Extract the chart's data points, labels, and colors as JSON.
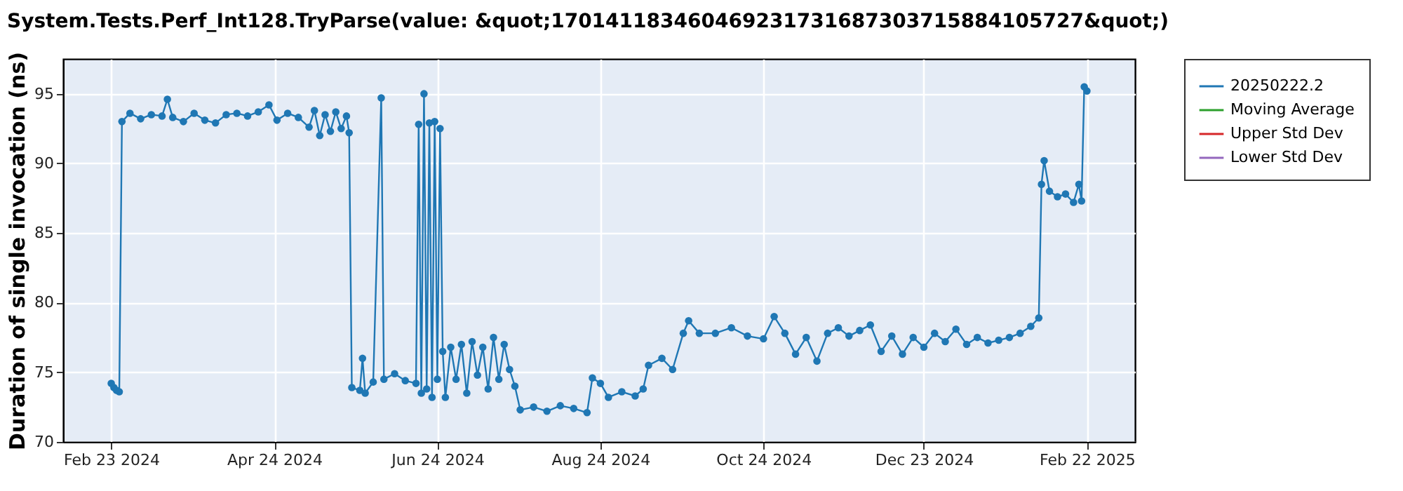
{
  "chart_data": {
    "type": "line",
    "title": "System.Tests.Perf_Int128.TryParse(value: &quot;170141183460469231731687303715884105727&quot;)",
    "ylabel": "Duration of single invocation (ns)",
    "x": [
      "2024-02-23",
      "2024-02-24",
      "2024-02-25",
      "2024-02-26",
      "2024-02-27",
      "2024-03-01",
      "2024-03-05",
      "2024-03-09",
      "2024-03-13",
      "2024-03-15",
      "2024-03-17",
      "2024-03-21",
      "2024-03-25",
      "2024-03-29",
      "2024-04-02",
      "2024-04-06",
      "2024-04-10",
      "2024-04-14",
      "2024-04-18",
      "2024-04-22",
      "2024-04-25",
      "2024-04-29",
      "2024-05-03",
      "2024-05-07",
      "2024-05-09",
      "2024-05-11",
      "2024-05-13",
      "2024-05-15",
      "2024-05-17",
      "2024-05-19",
      "2024-05-21",
      "2024-05-22",
      "2024-05-23",
      "2024-05-26",
      "2024-05-27",
      "2024-05-28",
      "2024-05-31",
      "2024-06-03",
      "2024-06-04",
      "2024-06-08",
      "2024-06-12",
      "2024-06-16",
      "2024-06-17",
      "2024-06-18",
      "2024-06-19",
      "2024-06-20",
      "2024-06-21",
      "2024-06-22",
      "2024-06-23",
      "2024-06-24",
      "2024-06-25",
      "2024-06-26",
      "2024-06-27",
      "2024-06-29",
      "2024-07-01",
      "2024-07-03",
      "2024-07-05",
      "2024-07-07",
      "2024-07-09",
      "2024-07-11",
      "2024-07-13",
      "2024-07-15",
      "2024-07-17",
      "2024-07-19",
      "2024-07-21",
      "2024-07-23",
      "2024-07-25",
      "2024-07-30",
      "2024-08-04",
      "2024-08-09",
      "2024-08-14",
      "2024-08-19",
      "2024-08-21",
      "2024-08-24",
      "2024-08-27",
      "2024-09-01",
      "2024-09-06",
      "2024-09-09",
      "2024-09-11",
      "2024-09-16",
      "2024-09-20",
      "2024-09-24",
      "2024-09-26",
      "2024-09-30",
      "2024-10-06",
      "2024-10-12",
      "2024-10-18",
      "2024-10-24",
      "2024-10-28",
      "2024-11-01",
      "2024-11-05",
      "2024-11-09",
      "2024-11-13",
      "2024-11-17",
      "2024-11-21",
      "2024-11-25",
      "2024-11-29",
      "2024-12-03",
      "2024-12-07",
      "2024-12-11",
      "2024-12-15",
      "2024-12-19",
      "2024-12-23",
      "2024-12-27",
      "2024-12-31",
      "2025-01-04",
      "2025-01-08",
      "2025-01-12",
      "2025-01-16",
      "2025-01-20",
      "2025-01-24",
      "2025-01-28",
      "2025-02-01",
      "2025-02-04",
      "2025-02-05",
      "2025-02-06",
      "2025-02-08",
      "2025-02-11",
      "2025-02-14",
      "2025-02-17",
      "2025-02-19",
      "2025-02-20",
      "2025-02-21",
      "2025-02-22"
    ],
    "series": [
      {
        "name": "20250222.2",
        "color": "#1f77b4",
        "values": [
          74.2,
          73.9,
          73.7,
          73.6,
          93.0,
          93.6,
          93.2,
          93.5,
          93.4,
          94.6,
          93.3,
          93.0,
          93.6,
          93.1,
          92.9,
          93.5,
          93.6,
          93.4,
          93.7,
          94.2,
          93.1,
          93.6,
          93.3,
          92.6,
          93.8,
          92.0,
          93.5,
          92.3,
          93.7,
          92.5,
          93.4,
          92.2,
          73.9,
          73.7,
          76.0,
          73.5,
          74.3,
          94.7,
          74.5,
          74.9,
          74.4,
          74.2,
          92.8,
          73.5,
          95.0,
          73.8,
          92.9,
          73.2,
          93.0,
          74.5,
          92.5,
          76.5,
          73.2,
          76.8,
          74.5,
          77.0,
          73.5,
          77.2,
          74.8,
          76.8,
          73.8,
          77.5,
          74.5,
          77.0,
          75.2,
          74.0,
          72.3,
          72.5,
          72.2,
          72.6,
          72.4,
          72.1,
          74.6,
          74.2,
          73.2,
          73.6,
          73.3,
          73.8,
          75.5,
          76.0,
          75.2,
          77.8,
          78.7,
          77.8,
          77.8,
          78.2,
          77.6,
          77.4,
          79.0,
          77.8,
          76.3,
          77.5,
          75.8,
          77.8,
          78.2,
          77.6,
          78.0,
          78.4,
          76.5,
          77.6,
          76.3,
          77.5,
          76.8,
          77.8,
          77.2,
          78.1,
          77.0,
          77.5,
          77.1,
          77.3,
          77.5,
          77.8,
          78.3,
          78.9,
          88.5,
          90.2,
          88.0,
          87.6,
          87.8,
          87.2,
          88.5,
          87.3,
          95.5,
          95.2
        ]
      },
      {
        "name": "Moving Average",
        "color": "#2ca02c",
        "values": [
          null,
          null,
          null,
          null,
          null,
          null,
          null,
          null,
          null,
          null,
          null,
          null,
          null,
          null,
          null,
          null,
          null,
          null,
          null,
          null,
          null,
          null,
          null,
          null,
          null,
          null,
          null,
          null,
          null,
          null,
          null,
          null,
          null,
          null,
          null,
          null,
          null,
          null,
          null,
          null,
          null,
          null,
          null,
          null,
          null,
          null,
          null,
          null,
          null,
          null,
          null,
          null,
          null,
          null,
          null,
          null,
          null,
          null,
          null,
          null,
          null,
          null,
          null,
          null,
          null,
          null,
          null,
          null,
          null,
          null,
          null,
          null,
          null,
          null,
          null,
          null,
          null,
          null,
          null,
          null,
          null,
          null,
          null,
          null,
          null,
          null,
          null,
          null,
          null,
          null,
          null,
          null,
          null,
          null,
          null,
          null,
          null,
          null,
          null,
          null,
          null,
          null,
          null,
          null,
          null,
          null,
          null,
          null,
          null,
          null,
          null,
          null,
          null,
          null,
          null,
          null,
          null,
          null,
          null,
          null,
          null,
          null,
          null,
          null
        ]
      },
      {
        "name": "Upper Std Dev",
        "color": "#d62728",
        "values": [
          null,
          null,
          null,
          null,
          null,
          null,
          null,
          null,
          null,
          null,
          null,
          null,
          null,
          null,
          null,
          null,
          null,
          null,
          null,
          null,
          null,
          null,
          null,
          null,
          null,
          null,
          null,
          null,
          null,
          null,
          null,
          null,
          null,
          null,
          null,
          null,
          null,
          null,
          null,
          null,
          null,
          null,
          null,
          null,
          null,
          null,
          null,
          null,
          null,
          null,
          null,
          null,
          null,
          null,
          null,
          null,
          null,
          null,
          null,
          null,
          null,
          null,
          null,
          null,
          null,
          null,
          null,
          null,
          null,
          null,
          null,
          null,
          null,
          null,
          null,
          null,
          null,
          null,
          null,
          null,
          null,
          null,
          null,
          null,
          null,
          null,
          null,
          null,
          null,
          null,
          null,
          null,
          null,
          null,
          null,
          null,
          null,
          null,
          null,
          null,
          null,
          null,
          null,
          null,
          null,
          null,
          null,
          null,
          null,
          null,
          null,
          null,
          null,
          null,
          null,
          null,
          null,
          null,
          null,
          null,
          null,
          null,
          null,
          null
        ]
      },
      {
        "name": "Lower Std Dev",
        "color": "#9467bd",
        "values": [
          null,
          null,
          null,
          null,
          null,
          null,
          null,
          null,
          null,
          null,
          null,
          null,
          null,
          null,
          null,
          null,
          null,
          null,
          null,
          null,
          null,
          null,
          null,
          null,
          null,
          null,
          null,
          null,
          null,
          null,
          null,
          null,
          null,
          null,
          null,
          null,
          null,
          null,
          null,
          null,
          null,
          null,
          null,
          null,
          null,
          null,
          null,
          null,
          null,
          null,
          null,
          null,
          null,
          null,
          null,
          null,
          null,
          null,
          null,
          null,
          null,
          null,
          null,
          null,
          null,
          null,
          null,
          null,
          null,
          null,
          null,
          null,
          null,
          null,
          null,
          null,
          null,
          null,
          null,
          null,
          null,
          null,
          null,
          null,
          null,
          null,
          null,
          null,
          null,
          null,
          null,
          null,
          null,
          null,
          null,
          null,
          null,
          null,
          null,
          null,
          null,
          null,
          null,
          null,
          null,
          null,
          null,
          null,
          null,
          null,
          null,
          null,
          null,
          null,
          null,
          null,
          null,
          null,
          null,
          null,
          null,
          null,
          null,
          null
        ]
      }
    ],
    "xlim": [
      "2024-02-05",
      "2025-03-12"
    ],
    "xticks": [
      {
        "value": "2024-02-23",
        "label": "Feb 23 2024"
      },
      {
        "value": "2024-04-24",
        "label": "Apr 24 2024"
      },
      {
        "value": "2024-06-24",
        "label": "Jun 24 2024"
      },
      {
        "value": "2024-08-24",
        "label": "Aug 24 2024"
      },
      {
        "value": "2024-10-24",
        "label": "Oct 24 2024"
      },
      {
        "value": "2024-12-23",
        "label": "Dec 23 2024"
      },
      {
        "value": "2025-02-22",
        "label": "Feb 22 2025"
      }
    ],
    "ylim": [
      70,
      97.5
    ],
    "yticks": [
      70,
      75,
      80,
      85,
      90,
      95
    ],
    "grid": true,
    "legend": "right",
    "marker": "circle",
    "line_style": "solid"
  }
}
